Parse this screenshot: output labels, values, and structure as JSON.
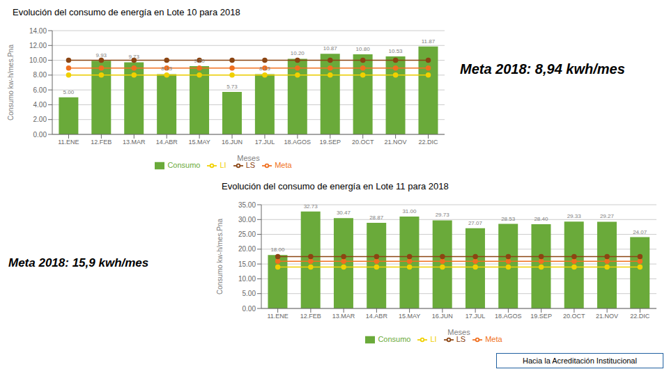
{
  "chart_data": [
    {
      "type": "bar",
      "title": "Evolución del consumo de energía en Lote 10 para 2018",
      "annotations": [
        "Meta 2018: 8,94 kwh/mes"
      ],
      "xlabel": "Meses",
      "ylabel": "Consumo kw-h/mes.Pna",
      "categories": [
        "11.ENE",
        "12.FEB",
        "13.MAR",
        "14.ABR",
        "15.MAY",
        "16.JUN",
        "17.JUL",
        "18.AGOS",
        "19.SEP",
        "20.OCT",
        "21.NOV",
        "22.DIC"
      ],
      "series": [
        {
          "name": "Consumo",
          "type": "bar",
          "color": "#6aaa3a",
          "data_labels": true,
          "values": [
            5.0,
            9.93,
            9.73,
            8.13,
            9.2,
            5.73,
            8.13,
            10.2,
            10.87,
            10.8,
            10.53,
            11.87
          ],
          "value_labels": [
            "5.00",
            "9.93",
            "9.73",
            "8.13",
            "9.20",
            "5.73",
            "8.13",
            "10.20",
            "10.87",
            "10.80",
            "10.53",
            "11.87"
          ]
        },
        {
          "name": "Meta",
          "type": "line",
          "color": "#f07020",
          "marker": "o",
          "values": [
            8.94,
            8.94,
            8.94,
            8.94,
            8.94,
            8.94,
            8.94,
            8.94,
            8.94,
            8.94,
            8.94,
            8.94
          ]
        },
        {
          "name": "LI",
          "type": "line",
          "color": "#f0d000",
          "marker": "o",
          "values": [
            8.0,
            8.0,
            8.0,
            8.0,
            8.0,
            8.0,
            8.0,
            8.0,
            8.0,
            8.0,
            8.0,
            8.0
          ]
        },
        {
          "name": "LS",
          "type": "line",
          "color": "#8b4513",
          "marker": "o",
          "values": [
            10.0,
            10.0,
            10.0,
            10.0,
            10.0,
            10.0,
            10.0,
            10.0,
            10.0,
            10.0,
            10.0,
            10.0
          ]
        }
      ],
      "ylim": [
        0,
        14
      ],
      "yticks": [
        {
          "value": 0,
          "label": "0.00"
        },
        {
          "value": 2.0,
          "label": "2.00"
        },
        {
          "value": 4.0,
          "label": "4.00"
        },
        {
          "value": 6.0,
          "label": "6.00"
        },
        {
          "value": 8.0,
          "label": "8.00"
        },
        {
          "value": 10.0,
          "label": "10.00"
        },
        {
          "value": 12.0,
          "label": "12.00"
        },
        {
          "value": 14.0,
          "label": "14.00"
        }
      ],
      "grid": true,
      "legend": "bottom"
    },
    {
      "type": "bar",
      "title": "Evolución del consumo de energía en Lote 11 para 2018",
      "annotations": [
        "Meta 2018: 15,9 kwh/mes",
        "Hacia la Acreditación Institucional"
      ],
      "xlabel": "Meses",
      "ylabel": "Consumo kw-h/mes.Pna",
      "categories": [
        "11.ENE",
        "12.FEB",
        "13.MAR",
        "14.ABR",
        "15.MAY",
        "16.JUN",
        "17.JUL",
        "18.AGOS",
        "19.SEP",
        "20.OCT",
        "21.NOV",
        "22.DIC"
      ],
      "series": [
        {
          "name": "Consumo",
          "type": "bar",
          "color": "#6aaa3a",
          "data_labels": true,
          "values": [
            18.0,
            32.73,
            30.47,
            28.87,
            31.0,
            29.73,
            27.07,
            28.53,
            28.4,
            29.33,
            29.27,
            24.07
          ],
          "value_labels": [
            "18.00",
            "32.73",
            "30.47",
            "28.87",
            "31.00",
            "29.73",
            "27.07",
            "28.53",
            "28.40",
            "29.33",
            "29.27",
            "24.07"
          ]
        },
        {
          "name": "Meta",
          "type": "line",
          "color": "#f07020",
          "marker": "o",
          "values": [
            15.9,
            15.9,
            15.9,
            15.9,
            15.9,
            15.9,
            15.9,
            15.9,
            15.9,
            15.9,
            15.9,
            15.9
          ]
        },
        {
          "name": "LI",
          "type": "line",
          "color": "#f0d000",
          "marker": "o",
          "values": [
            14.0,
            14.0,
            14.0,
            14.0,
            14.0,
            14.0,
            14.0,
            14.0,
            14.0,
            14.0,
            14.0,
            14.0
          ]
        },
        {
          "name": "LS",
          "type": "line",
          "color": "#8b4513",
          "marker": "o",
          "values": [
            17.5,
            17.5,
            17.5,
            17.5,
            17.5,
            17.5,
            17.5,
            17.5,
            17.5,
            17.5,
            17.5,
            17.5
          ]
        }
      ],
      "ylim": [
        0,
        35
      ],
      "yticks": [
        {
          "value": 0,
          "label": "0.00"
        },
        {
          "value": 5.0,
          "label": "5.00"
        },
        {
          "value": 10.0,
          "label": "10.00"
        },
        {
          "value": 15.0,
          "label": "15.00"
        },
        {
          "value": 20.0,
          "label": "20.00"
        },
        {
          "value": 25.0,
          "label": "25.00"
        },
        {
          "value": 30.0,
          "label": "30.00"
        },
        {
          "value": 35.0,
          "label": "35.00"
        }
      ],
      "grid": true,
      "legend": "bottom"
    }
  ]
}
